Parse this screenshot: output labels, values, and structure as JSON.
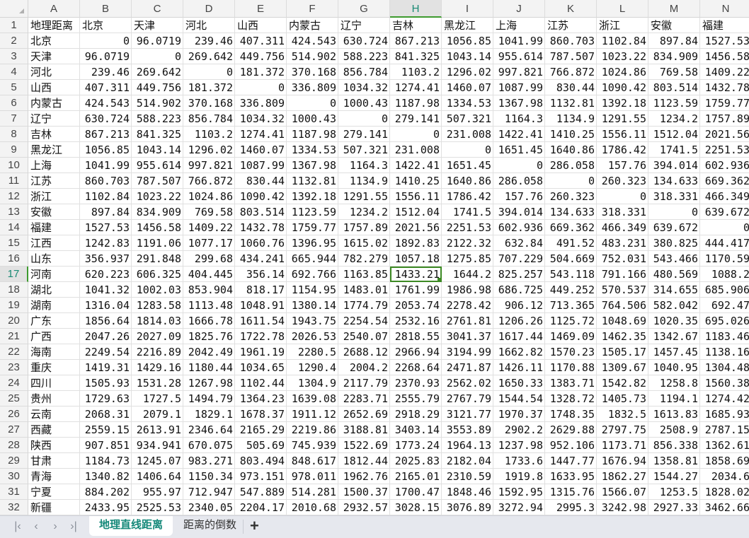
{
  "sheet": {
    "columns": [
      "A",
      "B",
      "C",
      "D",
      "E",
      "F",
      "G",
      "H",
      "I",
      "J",
      "K",
      "L",
      "M",
      "N"
    ],
    "selected_cell": "H17",
    "header_row": [
      "地理距离",
      "北京",
      "天津",
      "河北",
      "山西",
      "内蒙古",
      "辽宁",
      "吉林",
      "黑龙江",
      "上海",
      "江苏",
      "浙江",
      "安徽",
      "福建"
    ],
    "rows": [
      [
        "北京",
        "0",
        "96.0719",
        "239.46",
        "407.311",
        "424.543",
        "630.724",
        "867.213",
        "1056.85",
        "1041.99",
        "860.703",
        "1102.84",
        "897.84",
        "1527.53"
      ],
      [
        "天津",
        "96.0719",
        "0",
        "269.642",
        "449.756",
        "514.902",
        "588.223",
        "841.325",
        "1043.14",
        "955.614",
        "787.507",
        "1023.22",
        "834.909",
        "1456.58"
      ],
      [
        "河北",
        "239.46",
        "269.642",
        "0",
        "181.372",
        "370.168",
        "856.784",
        "1103.2",
        "1296.02",
        "997.821",
        "766.872",
        "1024.86",
        "769.58",
        "1409.22"
      ],
      [
        "山西",
        "407.311",
        "449.756",
        "181.372",
        "0",
        "336.809",
        "1034.32",
        "1274.41",
        "1460.07",
        "1087.99",
        "830.44",
        "1090.42",
        "803.514",
        "1432.78"
      ],
      [
        "内蒙古",
        "424.543",
        "514.902",
        "370.168",
        "336.809",
        "0",
        "1000.43",
        "1187.98",
        "1334.53",
        "1367.98",
        "1132.81",
        "1392.18",
        "1123.59",
        "1759.77"
      ],
      [
        "辽宁",
        "630.724",
        "588.223",
        "856.784",
        "1034.32",
        "1000.43",
        "0",
        "279.141",
        "507.321",
        "1164.3",
        "1134.9",
        "1291.55",
        "1234.2",
        "1757.89"
      ],
      [
        "吉林",
        "867.213",
        "841.325",
        "1103.2",
        "1274.41",
        "1187.98",
        "279.141",
        "0",
        "231.008",
        "1422.41",
        "1410.25",
        "1556.11",
        "1512.04",
        "2021.56"
      ],
      [
        "黑龙江",
        "1056.85",
        "1043.14",
        "1296.02",
        "1460.07",
        "1334.53",
        "507.321",
        "231.008",
        "0",
        "1651.45",
        "1640.86",
        "1786.42",
        "1741.5",
        "2251.53"
      ],
      [
        "上海",
        "1041.99",
        "955.614",
        "997.821",
        "1087.99",
        "1367.98",
        "1164.3",
        "1422.41",
        "1651.45",
        "0",
        "286.058",
        "157.76",
        "394.014",
        "602.936"
      ],
      [
        "江苏",
        "860.703",
        "787.507",
        "766.872",
        "830.44",
        "1132.81",
        "1134.9",
        "1410.25",
        "1640.86",
        "286.058",
        "0",
        "260.323",
        "134.633",
        "669.362"
      ],
      [
        "浙江",
        "1102.84",
        "1023.22",
        "1024.86",
        "1090.42",
        "1392.18",
        "1291.55",
        "1556.11",
        "1786.42",
        "157.76",
        "260.323",
        "0",
        "318.331",
        "466.349"
      ],
      [
        "安徽",
        "897.84",
        "834.909",
        "769.58",
        "803.514",
        "1123.59",
        "1234.2",
        "1512.04",
        "1741.5",
        "394.014",
        "134.633",
        "318.331",
        "0",
        "639.672"
      ],
      [
        "福建",
        "1527.53",
        "1456.58",
        "1409.22",
        "1432.78",
        "1759.77",
        "1757.89",
        "2021.56",
        "2251.53",
        "602.936",
        "669.362",
        "466.349",
        "639.672",
        "0"
      ],
      [
        "江西",
        "1242.83",
        "1191.06",
        "1077.17",
        "1060.76",
        "1396.95",
        "1615.02",
        "1892.83",
        "2122.32",
        "632.84",
        "491.52",
        "483.231",
        "380.825",
        "444.417"
      ],
      [
        "山东",
        "356.937",
        "291.848",
        "299.68",
        "434.241",
        "665.944",
        "782.279",
        "1057.18",
        "1275.85",
        "707.229",
        "504.669",
        "752.031",
        "543.466",
        "1170.59"
      ],
      [
        "河南",
        "620.223",
        "606.325",
        "404.445",
        "356.14",
        "692.766",
        "1163.85",
        "1433.21",
        "1644.2",
        "825.257",
        "543.118",
        "791.166",
        "480.569",
        "1088.2"
      ],
      [
        "湖北",
        "1041.32",
        "1002.03",
        "853.904",
        "818.17",
        "1154.95",
        "1483.01",
        "1761.99",
        "1986.98",
        "686.725",
        "449.252",
        "570.537",
        "314.655",
        "685.906"
      ],
      [
        "湖南",
        "1316.04",
        "1283.58",
        "1113.48",
        "1048.91",
        "1380.14",
        "1774.79",
        "2053.74",
        "2278.42",
        "906.12",
        "713.365",
        "764.506",
        "582.042",
        "692.47"
      ],
      [
        "广东",
        "1856.64",
        "1814.03",
        "1666.78",
        "1611.54",
        "1943.75",
        "2254.54",
        "2532.16",
        "2761.81",
        "1206.26",
        "1125.72",
        "1048.69",
        "1020.35",
        "695.026"
      ],
      [
        "广西",
        "2047.26",
        "2027.09",
        "1825.76",
        "1722.78",
        "2026.53",
        "2540.07",
        "2818.55",
        "3041.37",
        "1617.44",
        "1469.09",
        "1462.35",
        "1342.67",
        "1183.46"
      ],
      [
        "海南",
        "2249.54",
        "2216.89",
        "2042.49",
        "1961.19",
        "2280.5",
        "2688.12",
        "2966.94",
        "3194.99",
        "1662.82",
        "1570.23",
        "1505.17",
        "1457.45",
        "1138.16"
      ],
      [
        "重庆",
        "1419.31",
        "1429.16",
        "1180.44",
        "1034.65",
        "1290.4",
        "2004.2",
        "2268.64",
        "2471.87",
        "1426.11",
        "1170.88",
        "1309.67",
        "1040.95",
        "1304.48"
      ],
      [
        "四川",
        "1505.93",
        "1531.28",
        "1267.98",
        "1102.44",
        "1304.9",
        "2117.79",
        "2370.93",
        "2562.02",
        "1650.33",
        "1383.71",
        "1542.82",
        "1258.8",
        "1560.38"
      ],
      [
        "贵州",
        "1729.63",
        "1727.5",
        "1494.79",
        "1364.23",
        "1639.08",
        "2283.71",
        "2555.79",
        "2767.79",
        "1544.54",
        "1328.72",
        "1405.73",
        "1194.1",
        "1274.42"
      ],
      [
        "云南",
        "2068.31",
        "2079.1",
        "1829.1",
        "1678.37",
        "1911.12",
        "2652.69",
        "2918.29",
        "3121.77",
        "1970.37",
        "1748.35",
        "1832.5",
        "1613.83",
        "1685.93"
      ],
      [
        "西藏",
        "2559.15",
        "2613.91",
        "2346.64",
        "2165.29",
        "2219.86",
        "3188.81",
        "3403.14",
        "3553.89",
        "2902.2",
        "2629.88",
        "2797.75",
        "2508.9",
        "2787.15"
      ],
      [
        "陕西",
        "907.851",
        "934.941",
        "670.075",
        "505.69",
        "745.939",
        "1522.69",
        "1773.24",
        "1964.13",
        "1237.98",
        "952.106",
        "1173.71",
        "856.338",
        "1362.61"
      ],
      [
        "甘肃",
        "1184.73",
        "1245.07",
        "983.271",
        "803.494",
        "848.617",
        "1812.44",
        "2025.83",
        "2182.04",
        "1733.6",
        "1447.77",
        "1676.94",
        "1358.81",
        "1858.69"
      ],
      [
        "青海",
        "1340.82",
        "1406.64",
        "1150.34",
        "973.151",
        "978.011",
        "1962.76",
        "2165.01",
        "2310.59",
        "1919.8",
        "1633.95",
        "1862.27",
        "1544.27",
        "2034.6"
      ],
      [
        "宁夏",
        "884.202",
        "955.97",
        "712.947",
        "547.889",
        "514.281",
        "1500.37",
        "1700.47",
        "1848.46",
        "1592.95",
        "1315.76",
        "1566.07",
        "1253.5",
        "1828.02"
      ],
      [
        "新疆",
        "2433.95",
        "2525.53",
        "2340.05",
        "2204.17",
        "2010.68",
        "2932.57",
        "3028.15",
        "3076.89",
        "3272.94",
        "2995.3",
        "3242.98",
        "2927.33",
        "3462.66"
      ]
    ]
  },
  "tabbar": {
    "nav_icons": [
      "first-sheet-icon",
      "prev-sheet-icon",
      "next-sheet-icon",
      "last-sheet-icon"
    ],
    "nav_glyphs": [
      "|‹",
      "‹",
      "›",
      "›|"
    ],
    "tabs": [
      {
        "label": "地理直线距离",
        "active": true
      },
      {
        "label": "距离的倒数",
        "active": false
      }
    ],
    "add_label": "+"
  },
  "colors": {
    "accent": "#3d8a24",
    "active_tab_text": "#15897a"
  }
}
